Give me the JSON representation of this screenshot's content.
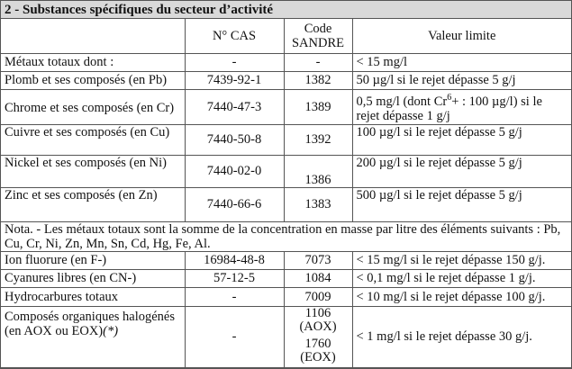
{
  "section_title": "2 - Substances spécifiques du secteur d’activité",
  "headers": {
    "substance": "",
    "cas": "N° CAS",
    "sandre_line1": "Code",
    "sandre_line2": "SANDRE",
    "limit": "Valeur limite"
  },
  "rows": [
    {
      "substance": "Métaux totaux dont :",
      "cas": "-",
      "sandre": "-",
      "limit": "< 15 mg/l"
    },
    {
      "substance": "Plomb et ses composés (en Pb)",
      "cas": "7439-92-1",
      "sandre": "1382",
      "limit": "50 µg/l si le rejet dépasse 5 g/j"
    },
    {
      "substance": "Chrome et ses composés (en Cr)",
      "cas": "7440-47-3",
      "sandre": "1389",
      "limit_pre": "0,5 mg/l (dont Cr",
      "limit_sup": "6",
      "limit_post": "+ : 100 µg/l) si le rejet dépasse 1 g/j"
    },
    {
      "substance": "Cuivre et ses composés (en Cu)",
      "cas": "7440-50-8",
      "sandre": "1392",
      "limit": "100 µg/l  si le rejet dépasse 5 g/j"
    },
    {
      "substance": "Nickel et ses composés (en Ni)",
      "cas": "7440-02-0",
      "sandre": "1386",
      "limit": "200 µg/l  si le rejet dépasse 5 g/j"
    },
    {
      "substance": "Zinc et ses composés (en Zn)",
      "cas": "7440-66-6",
      "sandre": "1383",
      "limit": "500 µg/l  si le rejet dépasse 5 g/j"
    }
  ],
  "note": "Nota. - Les métaux totaux sont la somme de la concentration en masse par litre des éléments suivants : Pb, Cu, Cr, Ni, Zn, Mn, Sn, Cd, Hg, Fe, Al.",
  "rows2": [
    {
      "substance": "Ion fluorure (en F-)",
      "cas": "16984-48-8",
      "sandre": "7073",
      "limit": "< 15 mg/l si le rejet dépasse 150 g/j."
    },
    {
      "substance": "Cyanures libres (en CN-)",
      "cas": "57-12-5",
      "sandre": "1084",
      "limit": "< 0,1 mg/l si le rejet dépasse 1 g/j."
    },
    {
      "substance": "Hydrocarbures totaux",
      "cas": "-",
      "sandre": "7009",
      "limit": "< 10 mg/l si le rejet dépasse 100 g/j."
    },
    {
      "substance": "Composés organiques halogénés (en AOX ou EOX)",
      "substance_note": "(*)",
      "cas": "-",
      "sandre_aox": "1106 (AOX)",
      "sandre_eox": "1760 (EOX)",
      "limit": "< 1 mg/l si le rejet dépasse 30 g/j."
    }
  ]
}
